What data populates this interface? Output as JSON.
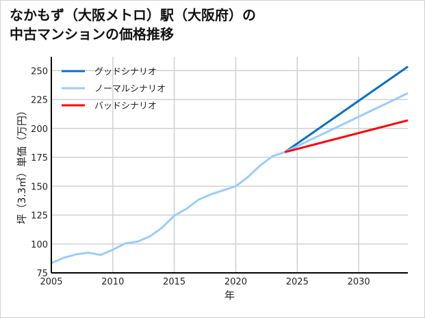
{
  "chart_data": {
    "type": "line",
    "title": [
      "なかもず（大阪メトロ）駅（大阪府）の",
      "中古マンションの価格推移"
    ],
    "xlabel": "年",
    "ylabel": "坪（3.3㎡）単価（万円）",
    "xlim": [
      2005,
      2034
    ],
    "ylim": [
      75,
      262
    ],
    "xticks": [
      2005,
      2010,
      2015,
      2020,
      2025,
      2030
    ],
    "yticks": [
      75,
      100,
      125,
      150,
      175,
      200,
      225,
      250
    ],
    "grid": true,
    "legend_position": "top-left",
    "history": {
      "x": [
        2005,
        2006,
        2007,
        2008,
        2009,
        2010,
        2011,
        2012,
        2013,
        2014,
        2015,
        2016,
        2017,
        2018,
        2019,
        2020,
        2021,
        2022,
        2023,
        2024
      ],
      "y": [
        83.4,
        88,
        91,
        92.5,
        90.5,
        95,
        100.5,
        102,
        106.5,
        114,
        124.5,
        130.5,
        138.5,
        143,
        146.5,
        150,
        158,
        168,
        176,
        179.5
      ]
    },
    "series": [
      {
        "name": "グッドシナリオ",
        "color": "#0070c8",
        "x": [
          2024,
          2034
        ],
        "y": [
          179.5,
          253.5
        ]
      },
      {
        "name": "ノーマルシナリオ",
        "color": "#99ccff",
        "x": [
          2024,
          2034
        ],
        "y": [
          179.5,
          230.5
        ]
      },
      {
        "name": "バッドシナリオ",
        "color": "#ff0000",
        "x": [
          2024,
          2034
        ],
        "y": [
          179.5,
          207
        ]
      }
    ]
  }
}
